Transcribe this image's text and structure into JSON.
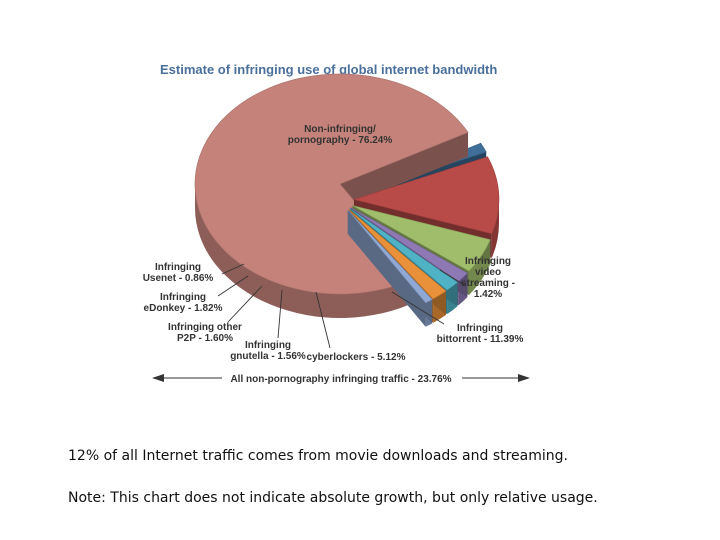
{
  "chart_data": {
    "type": "pie",
    "title": "Estimate of infringing use of global internet bandwidth",
    "unit": "%",
    "slices": [
      {
        "label": "Non-infringing/ pornography - 76.24%",
        "value": 76.24,
        "color": "#c4827a"
      },
      {
        "label": "Infringing video streaming - 1.42%",
        "value": 1.42,
        "color": "#3f6e98"
      },
      {
        "label": "Infringing bittorrent - 11.39%",
        "value": 11.39,
        "color": "#b84a48"
      },
      {
        "label": "Infringing cyberlockers - 5.12%",
        "value": 5.12,
        "color": "#9fbd6a"
      },
      {
        "label": "Infringing gnutella - 1.56%",
        "value": 1.56,
        "color": "#8e79b5"
      },
      {
        "label": "Infringing other P2P - 1.60%",
        "value": 1.6,
        "color": "#4fb3c5"
      },
      {
        "label": "Infringing eDonkey - 1.82%",
        "value": 1.82,
        "color": "#e8913a"
      },
      {
        "label": "Infringing Usenet - 0.86%",
        "value": 0.86,
        "color": "#8fa8d4"
      }
    ],
    "bracket_label": "All non-pornography infringing traffic - 23.76%"
  },
  "labels": {
    "non_infringing": [
      "Non-infringing/",
      "pornography - 76.24%"
    ],
    "video": [
      "Infringing",
      "video",
      "streaming -",
      "1.42%"
    ],
    "bittorrent": [
      "Infringing",
      "bittorrent - 11.39%"
    ],
    "cyberlockers": [
      "cyberlockers - 5.12%"
    ],
    "gnutella": [
      "Infringing",
      "gnutella - 1.56%"
    ],
    "other_p2p": [
      "Infringing other",
      "P2P - 1.60%"
    ],
    "edonkey": [
      "Infringing",
      "eDonkey - 1.82%"
    ],
    "usenet": [
      "Infringing",
      "Usenet - 0.86%"
    ]
  },
  "notes": {
    "line1": "12% of all Internet traffic comes from movie downloads and streaming.",
    "line2": "Note: This chart does not indicate absolute growth, but only relative usage."
  }
}
